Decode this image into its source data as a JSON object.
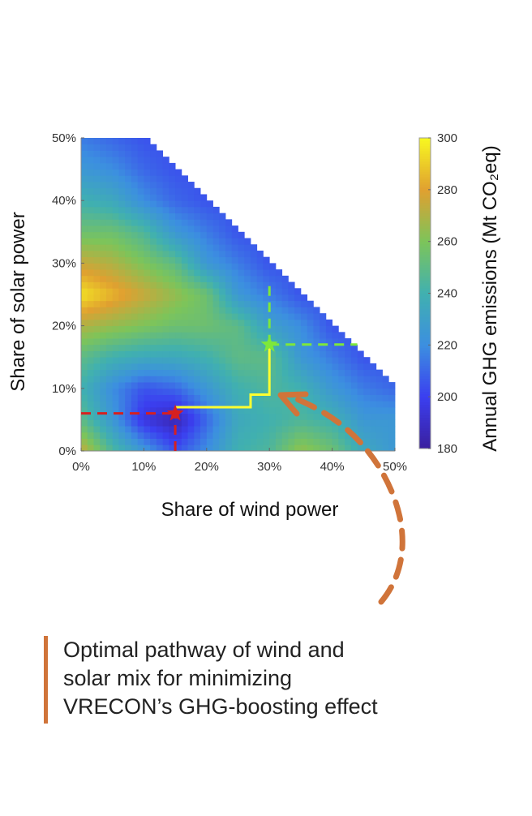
{
  "chart_data": {
    "type": "heatmap",
    "xlabel": "Share of wind power",
    "ylabel": "Share of solar power",
    "xlim": [
      0,
      50
    ],
    "ylim": [
      0,
      50
    ],
    "x_ticks": [
      "0%",
      "10%",
      "20%",
      "30%",
      "40%",
      "50%"
    ],
    "y_ticks": [
      "0%",
      "10%",
      "20%",
      "30%",
      "40%",
      "50%"
    ],
    "grid_x_wind_pct": [
      0,
      5,
      10,
      15,
      20,
      25,
      30,
      35,
      40,
      45,
      50
    ],
    "grid_y_solar_pct": [
      0,
      5,
      10,
      15,
      20,
      25,
      30,
      35,
      40,
      45,
      50
    ],
    "values_by_solar_row": [
      [
        275,
        245,
        225,
        205,
        220,
        240,
        245,
        265,
        255,
        235,
        225
      ],
      [
        250,
        225,
        195,
        185,
        210,
        235,
        240,
        245,
        240,
        225,
        225
      ],
      [
        240,
        220,
        205,
        210,
        225,
        240,
        245,
        240,
        225,
        215,
        210
      ],
      [
        250,
        240,
        235,
        235,
        240,
        250,
        250,
        225,
        215,
        205,
        null
      ],
      [
        270,
        265,
        260,
        255,
        255,
        250,
        230,
        220,
        205,
        null,
        null
      ],
      [
        295,
        285,
        275,
        265,
        255,
        225,
        215,
        205,
        null,
        null,
        null
      ],
      [
        275,
        270,
        260,
        250,
        225,
        215,
        205,
        null,
        null,
        null,
        null
      ],
      [
        255,
        255,
        245,
        225,
        215,
        205,
        null,
        null,
        null,
        null,
        null
      ],
      [
        240,
        235,
        220,
        210,
        205,
        null,
        null,
        null,
        null,
        null,
        null
      ],
      [
        225,
        220,
        210,
        205,
        null,
        null,
        null,
        null,
        null,
        null,
        null
      ],
      [
        215,
        210,
        205,
        null,
        null,
        null,
        null,
        null,
        null,
        null,
        null
      ]
    ],
    "feasible_region": "wind + solar <= 60%",
    "colorbar": {
      "label": "Annual GHG emissions (Mt CO₂eq)",
      "range": [
        180,
        300
      ],
      "ticks": [
        "180",
        "200",
        "220",
        "240",
        "260",
        "280",
        "300"
      ],
      "colormap": "parula"
    },
    "markers": [
      {
        "name": "minimum",
        "wind": 15,
        "solar": 6,
        "shape": "star",
        "color": "#d62020"
      },
      {
        "name": "pathway end",
        "wind": 30,
        "solar": 17,
        "shape": "star",
        "color": "#7ee83a"
      }
    ],
    "optimal_pathway": {
      "color": "#ffff30",
      "points": [
        [
          15,
          7
        ],
        [
          27,
          7
        ],
        [
          27,
          9
        ],
        [
          30,
          9
        ],
        [
          30,
          17
        ]
      ]
    }
  },
  "caption": {
    "lines": [
      "Optimal pathway of wind and",
      "solar mix for minimizing",
      "VRECON’s GHG-boosting effect"
    ],
    "accent_color": "#d0743a"
  }
}
